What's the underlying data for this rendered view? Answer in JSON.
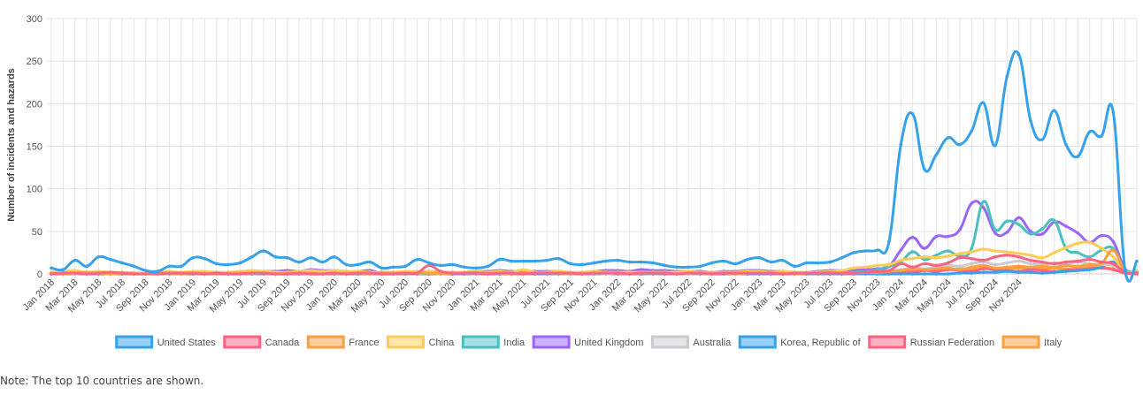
{
  "chart_data": {
    "type": "line",
    "ylabel": "Number of incidents and hazards",
    "ylim": [
      0,
      300
    ],
    "yticks": [
      0,
      50,
      100,
      150,
      200,
      250,
      300
    ],
    "grid": true,
    "legend_position": "bottom",
    "x_start": "Jan 2018",
    "x_end": "Dec 2024",
    "x_tick_labels": [
      "Jan 2018",
      "Mar 2018",
      "May 2018",
      "Jul 2018",
      "Sep 2018",
      "Nov 2018",
      "Jan 2019",
      "Mar 2019",
      "May 2019",
      "Jul 2019",
      "Sep 2019",
      "Nov 2019",
      "Jan 2020",
      "Mar 2020",
      "May 2020",
      "Jul 2020",
      "Sep 2020",
      "Nov 2020",
      "Jan 2021",
      "Mar 2021",
      "May 2021",
      "Jul 2021",
      "Sep 2021",
      "Nov 2021",
      "Jan 2022",
      "Mar 2022",
      "May 2022",
      "Jul 2022",
      "Sep 2022",
      "Nov 2022",
      "Jan 2023",
      "Mar 2023",
      "May 2023",
      "Jul 2023",
      "Sep 2023",
      "Nov 2023",
      "Jan 2024",
      "Mar 2024",
      "May 2024",
      "Jul 2024",
      "Sep 2024",
      "Nov 2024"
    ],
    "series": [
      {
        "name": "United States",
        "color": "#36a2eb",
        "values": [
          7,
          5,
          16,
          9,
          20,
          17,
          13,
          9,
          4,
          3,
          9,
          9,
          19,
          18,
          12,
          11,
          13,
          20,
          27,
          20,
          19,
          14,
          19,
          14,
          20,
          11,
          11,
          14,
          7,
          8,
          9,
          17,
          13,
          10,
          11,
          8,
          7,
          9,
          17,
          15,
          15,
          15,
          16,
          18,
          12,
          11,
          13,
          15,
          16,
          14,
          14,
          13,
          10,
          8,
          8,
          9,
          13,
          15,
          12,
          17,
          19,
          14,
          16,
          9,
          13,
          13,
          14,
          19,
          25,
          27,
          28,
          38,
          152,
          188,
          123,
          140,
          160,
          152,
          168,
          201,
          151,
          232,
          258,
          180,
          158,
          192,
          152,
          138,
          167,
          162,
          190,
          5,
          15
        ]
      },
      {
        "name": "Canada",
        "color": "#ff6384",
        "values": [
          0,
          1,
          1,
          0,
          1,
          2,
          1,
          0,
          0,
          0,
          1,
          1,
          1,
          0,
          1,
          0,
          0,
          1,
          1,
          0,
          0,
          1,
          0,
          0,
          1,
          0,
          1,
          1,
          0,
          0,
          1,
          1,
          10,
          3,
          1,
          1,
          1,
          0,
          1,
          1,
          0,
          1,
          1,
          1,
          1,
          0,
          1,
          1,
          1,
          0,
          1,
          1,
          1,
          0,
          1,
          1,
          0,
          1,
          1,
          1,
          1,
          1,
          0,
          1,
          1,
          1,
          1,
          1,
          1,
          2,
          3,
          4,
          12,
          8,
          12,
          10,
          13,
          19,
          18,
          16,
          20,
          22,
          20,
          16,
          14,
          12,
          14,
          15,
          17,
          14,
          12,
          2,
          1
        ]
      },
      {
        "name": "France",
        "color": "#ff9f40",
        "values": [
          1,
          0,
          1,
          2,
          1,
          0,
          1,
          1,
          0,
          1,
          1,
          0,
          1,
          1,
          0,
          1,
          1,
          1,
          1,
          0,
          1,
          1,
          1,
          0,
          1,
          1,
          1,
          0,
          2,
          1,
          1,
          1,
          1,
          0,
          1,
          1,
          2,
          1,
          1,
          0,
          1,
          1,
          1,
          1,
          0,
          1,
          1,
          1,
          1,
          0,
          1,
          1,
          1,
          0,
          1,
          1,
          1,
          1,
          0,
          1,
          1,
          1,
          1,
          0,
          1,
          1,
          2,
          1,
          1,
          2,
          2,
          3,
          4,
          6,
          5,
          6,
          7,
          5,
          8,
          10,
          7,
          8,
          9,
          8,
          9,
          8,
          10,
          9,
          11,
          12,
          28,
          3,
          2
        ]
      },
      {
        "name": "China",
        "color": "#ffcd56",
        "values": [
          2,
          3,
          4,
          2,
          3,
          2,
          2,
          1,
          1,
          2,
          3,
          2,
          3,
          3,
          2,
          2,
          3,
          4,
          3,
          2,
          2,
          3,
          4,
          3,
          4,
          3,
          3,
          2,
          2,
          2,
          3,
          3,
          3,
          2,
          2,
          2,
          3,
          2,
          3,
          2,
          5,
          2,
          2,
          3,
          2,
          2,
          3,
          2,
          2,
          2,
          2,
          2,
          2,
          2,
          3,
          2,
          2,
          2,
          2,
          3,
          3,
          2,
          3,
          2,
          2,
          2,
          3,
          4,
          7,
          8,
          10,
          11,
          16,
          18,
          20,
          19,
          21,
          24,
          26,
          29,
          27,
          26,
          24,
          22,
          19,
          25,
          31,
          36,
          37,
          30,
          20,
          3,
          3
        ]
      },
      {
        "name": "India",
        "color": "#4bc0c0",
        "values": [
          0,
          1,
          1,
          0,
          1,
          0,
          1,
          0,
          0,
          1,
          0,
          1,
          1,
          0,
          1,
          0,
          1,
          0,
          1,
          1,
          0,
          1,
          0,
          1,
          1,
          0,
          1,
          1,
          0,
          1,
          1,
          0,
          1,
          0,
          1,
          1,
          0,
          1,
          1,
          1,
          0,
          1,
          1,
          0,
          1,
          1,
          0,
          1,
          1,
          1,
          1,
          0,
          1,
          1,
          1,
          0,
          1,
          1,
          0,
          1,
          1,
          1,
          1,
          0,
          1,
          1,
          1,
          1,
          2,
          3,
          5,
          9,
          14,
          26,
          17,
          22,
          27,
          21,
          30,
          85,
          52,
          62,
          58,
          47,
          53,
          63,
          30,
          25,
          20,
          28,
          30,
          5,
          3
        ]
      },
      {
        "name": "United Kingdom",
        "color": "#9966ff",
        "values": [
          1,
          1,
          2,
          1,
          2,
          1,
          1,
          1,
          1,
          1,
          1,
          1,
          1,
          1,
          2,
          1,
          2,
          2,
          3,
          3,
          4,
          3,
          5,
          4,
          4,
          3,
          3,
          4,
          1,
          2,
          2,
          3,
          3,
          2,
          2,
          2,
          3,
          3,
          4,
          3,
          3,
          3,
          3,
          3,
          2,
          2,
          3,
          4,
          4,
          3,
          5,
          4,
          4,
          3,
          3,
          3,
          2,
          3,
          3,
          4,
          4,
          3,
          3,
          2,
          2,
          3,
          4,
          4,
          5,
          5,
          6,
          9,
          28,
          43,
          30,
          44,
          44,
          52,
          83,
          78,
          48,
          49,
          66,
          50,
          47,
          61,
          56,
          48,
          37,
          45,
          38,
          6,
          3
        ]
      },
      {
        "name": "Australia",
        "color": "#c9cbcf",
        "values": [
          0,
          1,
          0,
          1,
          1,
          0,
          1,
          1,
          0,
          1,
          0,
          1,
          1,
          0,
          1,
          1,
          0,
          1,
          1,
          1,
          0,
          1,
          1,
          1,
          1,
          0,
          1,
          1,
          0,
          1,
          1,
          1,
          1,
          0,
          1,
          1,
          0,
          1,
          1,
          0,
          1,
          1,
          1,
          1,
          0,
          1,
          1,
          0,
          1,
          1,
          1,
          0,
          1,
          1,
          0,
          1,
          1,
          1,
          0,
          1,
          1,
          1,
          1,
          0,
          1,
          1,
          1,
          1,
          1,
          2,
          2,
          3,
          5,
          7,
          6,
          8,
          10,
          9,
          12,
          14,
          11,
          13,
          15,
          12,
          11,
          13,
          12,
          14,
          12,
          11,
          10,
          3,
          2
        ]
      },
      {
        "name": "Korea, Republic of",
        "color": "#36a2eb",
        "values": [
          0,
          0,
          0,
          0,
          0,
          0,
          0,
          0,
          0,
          0,
          0,
          0,
          0,
          0,
          0,
          0,
          0,
          0,
          0,
          0,
          0,
          0,
          0,
          0,
          0,
          0,
          0,
          0,
          0,
          0,
          0,
          0,
          0,
          0,
          0,
          0,
          0,
          0,
          0,
          0,
          0,
          0,
          0,
          0,
          0,
          0,
          0,
          0,
          0,
          0,
          0,
          0,
          0,
          0,
          0,
          0,
          0,
          0,
          0,
          0,
          0,
          0,
          0,
          0,
          0,
          0,
          0,
          0,
          0,
          0,
          0,
          0,
          0,
          0,
          0,
          0,
          0,
          1,
          1,
          2,
          2,
          3,
          2,
          2,
          1,
          2,
          3,
          4,
          5,
          8,
          14,
          2,
          1
        ]
      },
      {
        "name": "Russian Federation",
        "color": "#ff6384",
        "values": [
          0,
          0,
          1,
          0,
          0,
          0,
          0,
          0,
          0,
          0,
          0,
          0,
          0,
          0,
          0,
          0,
          0,
          0,
          0,
          0,
          0,
          0,
          0,
          0,
          0,
          0,
          0,
          0,
          0,
          0,
          0,
          0,
          0,
          0,
          0,
          0,
          0,
          0,
          0,
          0,
          0,
          0,
          0,
          0,
          0,
          0,
          0,
          0,
          0,
          0,
          0,
          0,
          0,
          0,
          0,
          0,
          0,
          0,
          0,
          0,
          0,
          0,
          0,
          0,
          0,
          0,
          0,
          0,
          0,
          0,
          0,
          0,
          3,
          2,
          4,
          3,
          5,
          4,
          3,
          6,
          5,
          4,
          3,
          5,
          4,
          3,
          4,
          5,
          6,
          7,
          5,
          1,
          0
        ]
      },
      {
        "name": "Italy",
        "color": "#ff9f40",
        "values": [
          0,
          0,
          0,
          1,
          0,
          0,
          0,
          0,
          1,
          0,
          0,
          0,
          0,
          1,
          0,
          0,
          0,
          0,
          0,
          0,
          0,
          1,
          0,
          0,
          0,
          0,
          0,
          0,
          1,
          0,
          0,
          0,
          0,
          0,
          0,
          0,
          0,
          0,
          0,
          0,
          1,
          0,
          0,
          0,
          0,
          0,
          0,
          0,
          0,
          0,
          0,
          0,
          0,
          0,
          0,
          0,
          0,
          0,
          0,
          0,
          0,
          0,
          0,
          0,
          0,
          0,
          0,
          0,
          1,
          1,
          1,
          2,
          3,
          3,
          4,
          4,
          5,
          6,
          6,
          7,
          6,
          6,
          7,
          6,
          6,
          7,
          6,
          7,
          8,
          7,
          6,
          1,
          1
        ]
      }
    ]
  },
  "note": "Note: The top 10 countries are shown."
}
